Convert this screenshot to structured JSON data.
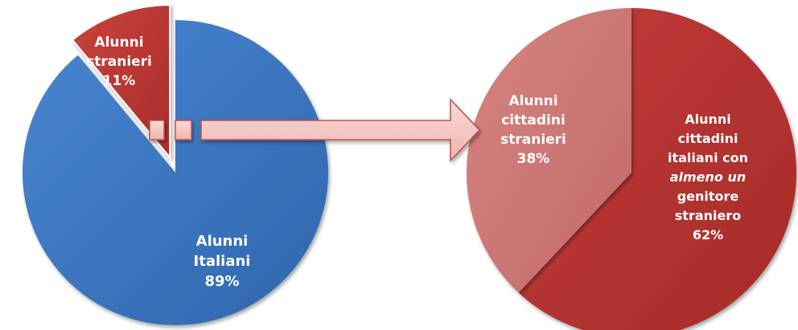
{
  "chart_data": [
    {
      "type": "pie",
      "slices": [
        {
          "label_lines": [
            "Alunni",
            "Italiani"
          ],
          "value": 89,
          "value_label": "89%",
          "color": "#3d78c5"
        },
        {
          "label_lines": [
            "Alunni",
            "stranieri"
          ],
          "value": 11,
          "value_label": "11%",
          "color": "#be3a35",
          "exploded": true
        }
      ]
    },
    {
      "type": "pie",
      "slices": [
        {
          "label_lines": [
            "Alunni",
            "cittadini",
            "stranieri"
          ],
          "value": 38,
          "value_label": "38%",
          "color": "#c97373"
        },
        {
          "label_lines": [
            "Alunni",
            "cittadini",
            "italiani con",
            "almeno un",
            "genitore",
            "straniero"
          ],
          "italic_line": 3,
          "value": 62,
          "value_label": "62%",
          "color": "#b53331"
        }
      ]
    }
  ],
  "arrow": {
    "fill": "#f2c4c0",
    "stroke": "#c0504d"
  }
}
